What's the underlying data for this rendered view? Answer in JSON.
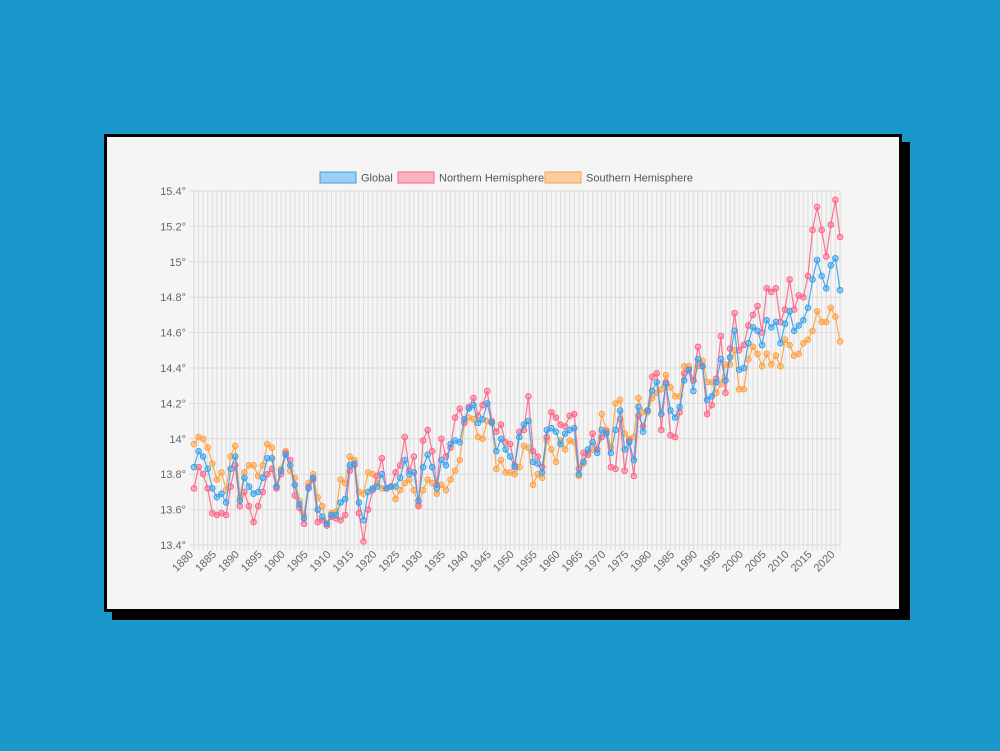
{
  "chart_data": {
    "type": "line",
    "title": "",
    "xlabel": "",
    "ylabel": "",
    "x_start": 1880,
    "x_end": 2021,
    "xlim": [
      1880,
      2021
    ],
    "ylim": [
      13.4,
      15.4
    ],
    "y_ticks": [
      "13.4°",
      "13.6°",
      "13.8°",
      "14°",
      "14.2°",
      "14.4°",
      "14.6°",
      "14.8°",
      "15°",
      "15.2°",
      "15.4°"
    ],
    "x_ticks": [
      "1880",
      "1885",
      "1890",
      "1895",
      "1900",
      "1905",
      "1910",
      "1915",
      "1920",
      "1925",
      "1930",
      "1935",
      "1940",
      "1945",
      "1950",
      "1955",
      "1960",
      "1965",
      "1970",
      "1975",
      "1980",
      "1985",
      "1990",
      "1995",
      "2000",
      "2005",
      "2010",
      "2015",
      "2020"
    ],
    "grid": true,
    "legend_position": "top",
    "series": [
      {
        "name": "Global",
        "color": "#36a2eb",
        "values": [
          13.84,
          13.93,
          13.9,
          13.83,
          13.72,
          13.67,
          13.69,
          13.64,
          13.83,
          13.9,
          13.65,
          13.78,
          13.73,
          13.69,
          13.7,
          13.78,
          13.89,
          13.89,
          13.73,
          13.82,
          13.91,
          13.85,
          13.74,
          13.63,
          13.55,
          13.72,
          13.78,
          13.6,
          13.56,
          13.52,
          13.57,
          13.57,
          13.64,
          13.66,
          13.85,
          13.86,
          13.64,
          13.54,
          13.7,
          13.72,
          13.73,
          13.8,
          13.72,
          13.73,
          13.73,
          13.78,
          13.88,
          13.8,
          13.81,
          13.65,
          13.84,
          13.91,
          13.84,
          13.72,
          13.88,
          13.85,
          13.97,
          13.99,
          13.98,
          14.11,
          14.17,
          14.19,
          14.09,
          14.11,
          14.2,
          14.09,
          13.93,
          14.0,
          13.94,
          13.9,
          13.84,
          14.01,
          14.08,
          14.1,
          13.87,
          13.86,
          13.81,
          14.05,
          14.06,
          14.04,
          13.97,
          14.03,
          14.05,
          14.06,
          13.8,
          13.87,
          13.94,
          13.98,
          13.92,
          14.05,
          14.03,
          13.92,
          14.05,
          14.16,
          13.94,
          13.98,
          13.88,
          14.18,
          14.04,
          14.16,
          14.27,
          14.32,
          14.14,
          14.31,
          14.16,
          14.12,
          14.18,
          14.33,
          14.39,
          14.27,
          14.45,
          14.41,
          14.22,
          14.24,
          14.32,
          14.45,
          14.33,
          14.46,
          14.61,
          14.39,
          14.4,
          14.54,
          14.63,
          14.61,
          14.53,
          14.67,
          14.63,
          14.66,
          14.54,
          14.65,
          14.72,
          14.61,
          14.64,
          14.67,
          14.74,
          14.9,
          15.01,
          14.92,
          14.85,
          14.98,
          15.02,
          14.84
        ]
      },
      {
        "name": "Northern Hemisphere",
        "color": "#ff6384",
        "values": [
          13.72,
          13.84,
          13.8,
          13.72,
          13.58,
          13.57,
          13.58,
          13.57,
          13.73,
          13.85,
          13.62,
          13.7,
          13.62,
          13.53,
          13.62,
          13.7,
          13.8,
          13.83,
          13.72,
          13.8,
          13.92,
          13.88,
          13.68,
          13.61,
          13.52,
          13.73,
          13.77,
          13.53,
          13.54,
          13.51,
          13.56,
          13.55,
          13.54,
          13.57,
          13.82,
          13.85,
          13.58,
          13.42,
          13.6,
          13.71,
          13.79,
          13.89,
          13.72,
          13.73,
          13.81,
          13.85,
          14.01,
          13.82,
          13.9,
          13.62,
          13.99,
          14.05,
          13.93,
          13.74,
          14.0,
          13.9,
          13.95,
          14.12,
          14.17,
          14.09,
          14.18,
          14.23,
          14.13,
          14.19,
          14.27,
          14.1,
          14.04,
          14.08,
          13.98,
          13.97,
          13.85,
          14.04,
          14.05,
          14.24,
          13.93,
          13.9,
          13.84,
          14.01,
          14.15,
          14.12,
          14.08,
          14.07,
          14.13,
          14.14,
          13.83,
          13.92,
          13.91,
          14.03,
          13.94,
          14.01,
          14.04,
          13.84,
          13.83,
          14.11,
          13.82,
          13.99,
          13.79,
          14.13,
          14.07,
          14.16,
          14.35,
          14.37,
          14.05,
          14.32,
          14.02,
          14.01,
          14.15,
          14.37,
          14.39,
          14.33,
          14.52,
          14.41,
          14.14,
          14.19,
          14.34,
          14.58,
          14.26,
          14.51,
          14.71,
          14.5,
          14.53,
          14.64,
          14.7,
          14.75,
          14.6,
          14.85,
          14.83,
          14.85,
          14.66,
          14.73,
          14.9,
          14.73,
          14.81,
          14.8,
          14.92,
          15.18,
          15.31,
          15.18,
          15.03,
          15.21,
          15.35,
          15.14
        ]
      },
      {
        "name": "Southern Hemisphere",
        "color": "#ffa040",
        "values": [
          13.97,
          14.01,
          14.0,
          13.95,
          13.86,
          13.77,
          13.81,
          13.71,
          13.9,
          13.96,
          13.67,
          13.81,
          13.85,
          13.85,
          13.79,
          13.85,
          13.97,
          13.95,
          13.73,
          13.83,
          13.93,
          13.82,
          13.78,
          13.65,
          13.57,
          13.75,
          13.8,
          13.67,
          13.62,
          13.52,
          13.58,
          13.59,
          13.77,
          13.75,
          13.9,
          13.88,
          13.7,
          13.69,
          13.81,
          13.8,
          13.75,
          13.72,
          13.72,
          13.73,
          13.66,
          13.71,
          13.75,
          13.77,
          13.71,
          13.63,
          13.71,
          13.77,
          13.75,
          13.69,
          13.74,
          13.71,
          13.77,
          13.82,
          13.88,
          14.09,
          14.12,
          14.11,
          14.01,
          14.0,
          14.1,
          14.09,
          13.83,
          13.88,
          13.81,
          13.81,
          13.8,
          13.84,
          13.96,
          13.95,
          13.74,
          13.8,
          13.78,
          13.99,
          13.94,
          13.87,
          13.99,
          13.94,
          13.99,
          13.98,
          13.79,
          13.86,
          13.92,
          13.94,
          13.94,
          14.14,
          14.05,
          13.95,
          14.2,
          14.22,
          14.03,
          14.0,
          14.01,
          14.23,
          14.15,
          14.15,
          14.23,
          14.26,
          14.28,
          14.36,
          14.29,
          14.24,
          14.24,
          14.41,
          14.41,
          14.33,
          14.41,
          14.44,
          14.32,
          14.32,
          14.26,
          14.31,
          14.42,
          14.42,
          14.5,
          14.28,
          14.28,
          14.45,
          14.52,
          14.48,
          14.41,
          14.48,
          14.42,
          14.47,
          14.41,
          14.56,
          14.53,
          14.47,
          14.48,
          14.54,
          14.56,
          14.61,
          14.72,
          14.66,
          14.66,
          14.74,
          14.69,
          14.55
        ]
      }
    ]
  }
}
